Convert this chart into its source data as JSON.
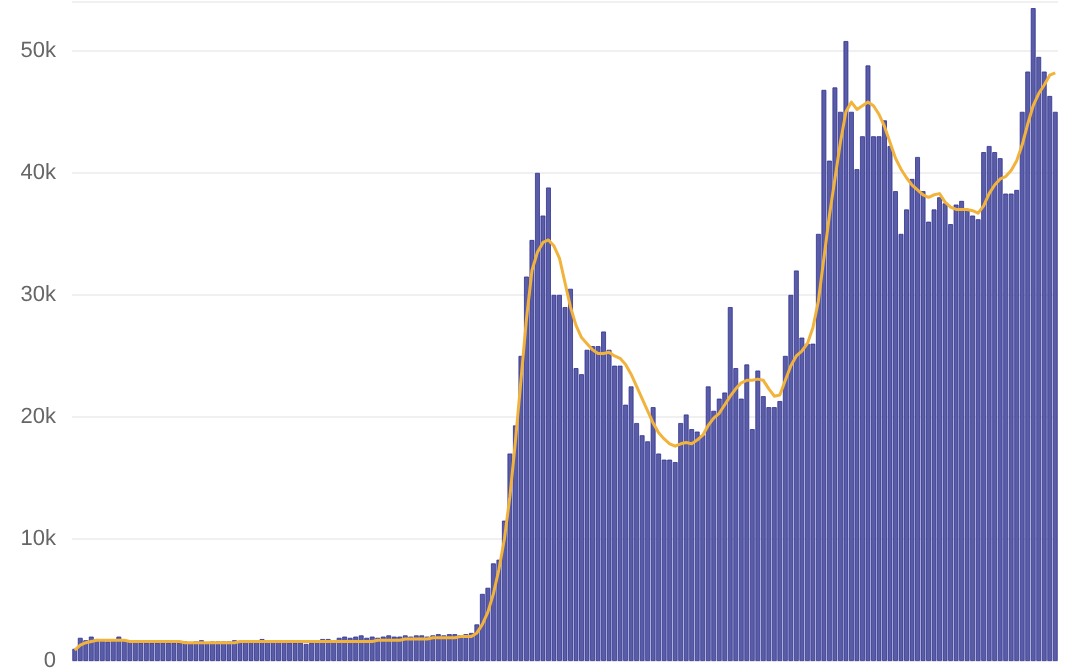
{
  "chart_data": {
    "type": "bar",
    "categories": [
      null,
      null,
      null,
      null,
      null,
      null,
      null,
      null,
      null,
      null,
      null,
      null,
      null,
      null,
      null,
      null,
      null,
      null,
      null,
      null,
      null,
      null,
      null,
      null,
      null,
      null,
      null,
      null,
      null,
      null,
      null,
      null,
      null,
      null,
      null,
      null,
      null,
      null,
      null,
      null,
      null,
      null,
      null,
      null,
      null,
      null,
      null,
      null,
      null,
      null,
      null,
      null,
      null,
      null,
      null,
      null,
      null,
      null,
      null,
      null,
      null,
      null,
      null,
      null,
      null,
      null,
      null,
      null,
      null,
      null,
      null,
      null,
      null,
      null,
      null,
      null,
      null,
      null,
      null,
      null,
      null,
      null,
      null,
      null,
      null,
      null,
      null,
      null,
      null,
      null,
      null,
      null,
      null,
      null,
      null,
      null,
      null,
      null,
      null,
      null,
      null,
      null,
      null,
      null,
      null,
      null,
      null,
      null,
      null,
      null,
      null,
      null,
      null,
      null,
      null,
      null,
      null,
      null,
      null,
      null,
      null,
      null,
      null,
      null,
      null,
      null,
      null,
      null,
      null,
      null,
      null,
      null,
      null,
      null,
      null,
      null,
      null,
      null,
      null,
      null,
      null,
      null,
      null,
      null,
      null,
      null,
      null,
      null,
      null,
      null,
      null,
      null,
      null,
      null,
      null,
      null,
      null,
      null,
      null,
      null,
      null,
      null,
      null,
      null,
      null,
      null,
      null,
      null,
      null,
      null,
      null,
      null,
      null,
      null,
      null,
      null,
      null,
      null,
      null
    ],
    "series": [
      {
        "color": "#5a5da6",
        "values": [
          1000,
          1900,
          1700,
          2000,
          1800,
          1700,
          1600,
          1700,
          2000,
          1700,
          1600,
          1600,
          1500,
          1500,
          1500,
          1500,
          1500,
          1500,
          1500,
          1500,
          1600,
          1500,
          1600,
          1700,
          1500,
          1600,
          1600,
          1600,
          1600,
          1700,
          1600,
          1600,
          1600,
          1700,
          1800,
          1700,
          1700,
          1600,
          1600,
          1500,
          1500,
          1500,
          1400,
          1500,
          1700,
          1800,
          1800,
          1700,
          1900,
          2000,
          1900,
          2000,
          2100,
          1900,
          2000,
          1900,
          2000,
          2100,
          2000,
          2000,
          2100,
          2000,
          2100,
          2100,
          2000,
          2100,
          2200,
          2100,
          2200,
          2200,
          2100,
          2200,
          2300,
          3000,
          5500,
          6000,
          8000,
          8300,
          11500,
          17000,
          19300,
          25000,
          31500,
          34500,
          40000,
          36500,
          38800,
          30000,
          30000,
          29000,
          30500,
          24000,
          23500,
          25500,
          25800,
          25800,
          27000,
          25500,
          24200,
          24200,
          21000,
          22500,
          19500,
          18500,
          18000,
          20800,
          17000,
          16500,
          16500,
          16300,
          19500,
          20200,
          19000,
          18800,
          18500,
          22500,
          20500,
          21500,
          22000,
          29000,
          24000,
          21500,
          24300,
          19000,
          23800,
          21700,
          20800,
          20800,
          21300,
          25000,
          30000,
          32000,
          26500,
          26000,
          26000,
          35000,
          46800,
          41000,
          47000,
          45000,
          50800,
          45000,
          40300,
          43000,
          48800,
          43000,
          43000,
          44300,
          42200,
          38500,
          35000,
          37000,
          39500,
          41300,
          38500,
          36000,
          37000,
          38000,
          37500,
          35800,
          37400,
          37700,
          37000,
          36500,
          36200,
          41700,
          42200,
          41700,
          41200,
          38300,
          38300,
          38600,
          45000,
          48300,
          53500,
          49500,
          48300,
          46300,
          45000
        ]
      },
      {
        "type": "line",
        "color": "#f2b33d",
        "values": [
          900,
          1300,
          1500,
          1600,
          1700,
          1700,
          1700,
          1700,
          1700,
          1700,
          1600,
          1600,
          1600,
          1600,
          1600,
          1600,
          1600,
          1600,
          1600,
          1600,
          1500,
          1500,
          1500,
          1500,
          1500,
          1500,
          1500,
          1500,
          1500,
          1500,
          1600,
          1600,
          1600,
          1600,
          1600,
          1600,
          1600,
          1600,
          1600,
          1600,
          1600,
          1600,
          1600,
          1600,
          1600,
          1600,
          1600,
          1600,
          1600,
          1600,
          1600,
          1600,
          1600,
          1600,
          1600,
          1700,
          1700,
          1700,
          1700,
          1700,
          1800,
          1800,
          1800,
          1800,
          1800,
          1900,
          1900,
          1900,
          1900,
          1900,
          2000,
          2000,
          2000,
          2300,
          3000,
          4000,
          5500,
          7500,
          10000,
          13500,
          18000,
          23000,
          28000,
          32000,
          33500,
          34300,
          34500,
          34000,
          33000,
          31000,
          29000,
          27500,
          26500,
          26000,
          25500,
          25200,
          25200,
          25300,
          25000,
          24800,
          24300,
          23500,
          22500,
          21500,
          20500,
          19500,
          18700,
          18200,
          17800,
          17600,
          17800,
          17900,
          17800,
          18100,
          18500,
          19300,
          19900,
          20300,
          21000,
          21700,
          22300,
          22800,
          23000,
          23000,
          23100,
          23000,
          22300,
          21700,
          21800,
          23000,
          24200,
          25000,
          25400,
          26000,
          27300,
          29500,
          33000,
          36500,
          39500,
          42500,
          45000,
          45800,
          45200,
          45500,
          45800,
          45500,
          44800,
          43800,
          42500,
          41200,
          40300,
          39600,
          39000,
          38600,
          38200,
          38000,
          38200,
          38300,
          37600,
          37200,
          37000,
          37000,
          37000,
          36900,
          36700,
          37300,
          38300,
          39000,
          39500,
          39700,
          40200,
          41000,
          42300,
          44000,
          45500,
          46500,
          47200,
          48000,
          48200
        ]
      }
    ],
    "ylim": [
      0,
      54000
    ],
    "yticks": [
      0,
      {
        "value": 10000,
        "label": "10k"
      },
      {
        "value": 20000,
        "label": "20k"
      },
      {
        "value": 30000,
        "label": "30k"
      },
      {
        "value": 40000,
        "label": "40k"
      },
      {
        "value": 50000,
        "label": "50k"
      }
    ],
    "grid": "y"
  }
}
